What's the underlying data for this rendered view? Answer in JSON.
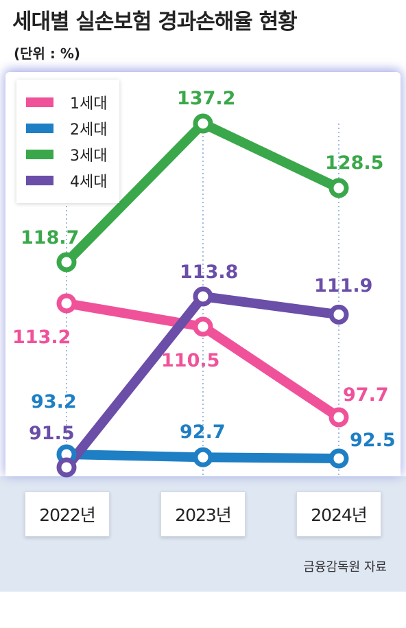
{
  "title": "세대별 실손보험 경과손해율 현황",
  "unit": "(단위 : %)",
  "source": "금융감독원 자료",
  "chart_data": {
    "type": "line",
    "categories": [
      "2022년",
      "2023년",
      "2024년"
    ],
    "series": [
      {
        "name": "1세대",
        "color": "#f0529a",
        "values": [
          113.2,
          110.5,
          97.7
        ]
      },
      {
        "name": "2세대",
        "color": "#1e7fc4",
        "values": [
          93.2,
          92.7,
          92.5
        ]
      },
      {
        "name": "3세대",
        "color": "#3aa84a",
        "values": [
          118.7,
          137.2,
          128.5
        ]
      },
      {
        "name": "4세대",
        "color": "#6a4ea8",
        "values": [
          91.5,
          113.8,
          111.9
        ]
      }
    ],
    "legend_position": "top-left",
    "grid": "vertical-dotted"
  },
  "labels": {
    "s0": [
      "113.2",
      "110.5",
      "97.7"
    ],
    "s1": [
      "93.2",
      "92.7",
      "92.5"
    ],
    "s2": [
      "118.7",
      "137.2",
      "128.5"
    ],
    "s3": [
      "91.5",
      "113.8",
      "111.9"
    ]
  }
}
